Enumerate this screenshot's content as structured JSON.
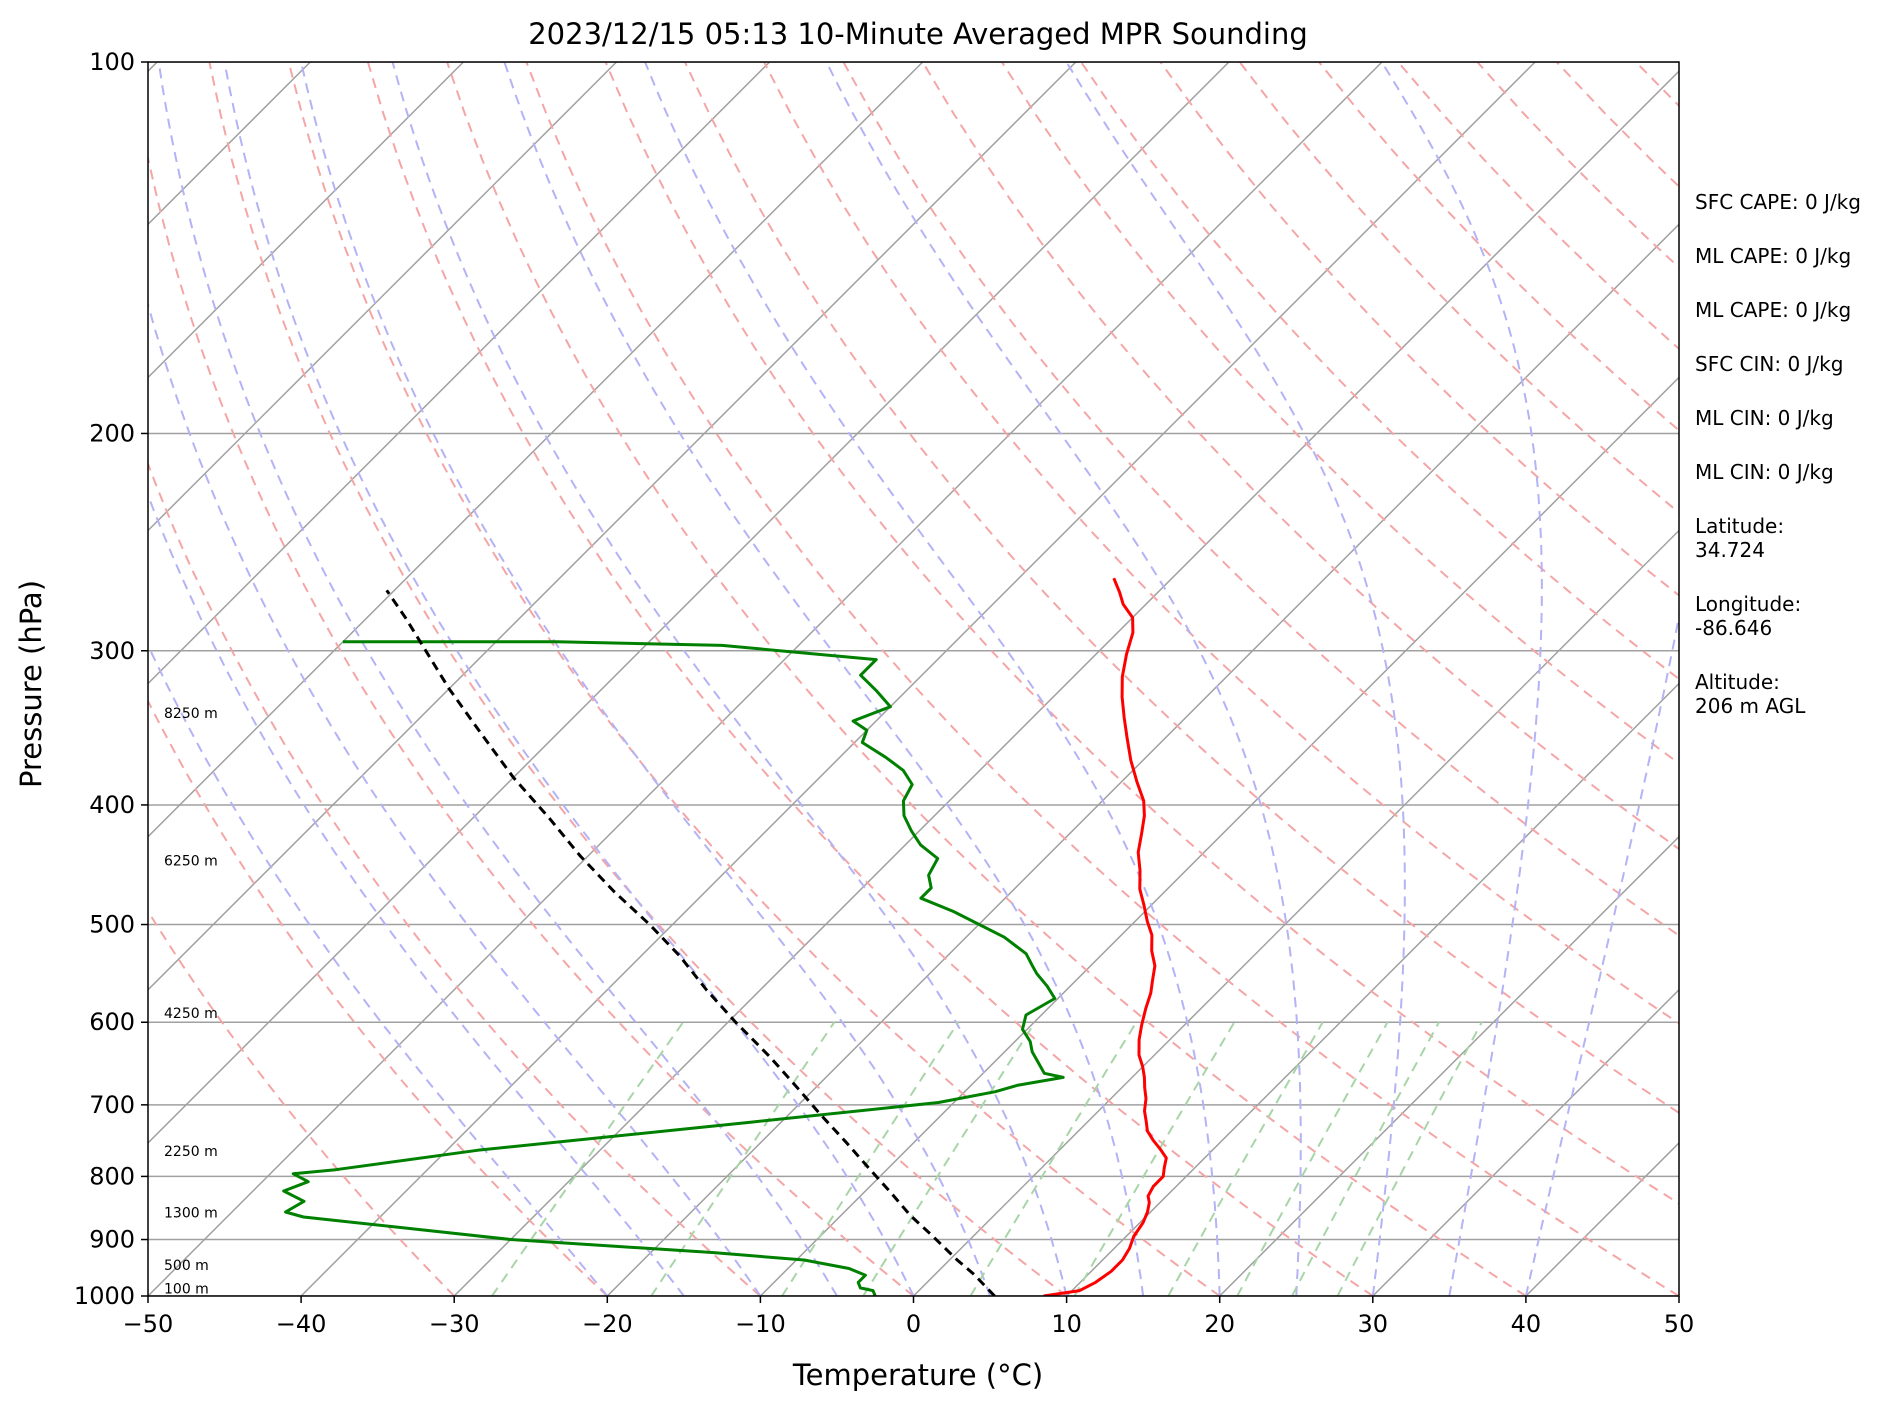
{
  "chart_data": {
    "type": "skew-t",
    "title": "2023/12/15 05:13 10-Minute Averaged MPR Sounding",
    "xlabel": "Temperature (°C)",
    "ylabel": "Pressure (hPa)",
    "xlim": [
      -50,
      50
    ],
    "ylim": [
      1000,
      100
    ],
    "y_scale": "log",
    "x_ticks": [
      -50,
      -40,
      -30,
      -20,
      -10,
      0,
      10,
      20,
      30,
      40,
      50
    ],
    "x_tick_labels": [
      "−50",
      "−40",
      "−30",
      "−20",
      "−10",
      "0",
      "10",
      "20",
      "30",
      "40",
      "50"
    ],
    "y_ticks": [
      1000,
      900,
      800,
      700,
      600,
      500,
      400,
      300,
      200,
      100
    ],
    "y_tick_labels": [
      "1000",
      "900",
      "800",
      "700",
      "600",
      "500",
      "400",
      "300",
      "200",
      "100"
    ],
    "grid": true,
    "background_lines": {
      "isotherms_color": "#a0a0a0",
      "dry_adiabats_color": "#f4a6a6",
      "moist_adiabats_color": "#b3b3f5",
      "mixing_ratio_color": "#a8d5a8"
    },
    "series": [
      {
        "color": "#ff0000",
        "points": [
          [
            8.5,
            1000
          ],
          [
            10.5,
            990
          ],
          [
            11.0,
            975
          ],
          [
            11.3,
            955
          ],
          [
            11.3,
            935
          ],
          [
            11.0,
            915
          ],
          [
            10.5,
            895
          ],
          [
            10.2,
            872
          ],
          [
            9.8,
            855
          ],
          [
            9.3,
            840
          ],
          [
            8.8,
            830
          ],
          [
            8.5,
            815
          ],
          [
            8.5,
            800
          ],
          [
            8.0,
            787
          ],
          [
            7.5,
            773
          ],
          [
            6.5,
            760
          ],
          [
            5.5,
            748
          ],
          [
            4.5,
            735
          ],
          [
            3.8,
            722
          ],
          [
            3.0,
            708
          ],
          [
            2.3,
            692
          ],
          [
            1.5,
            678
          ],
          [
            0.8,
            665
          ],
          [
            0.0,
            652
          ],
          [
            -1.0,
            638
          ],
          [
            -2.0,
            620
          ],
          [
            -2.8,
            603
          ],
          [
            -3.6,
            585
          ],
          [
            -4.3,
            568
          ],
          [
            -5.0,
            555
          ],
          [
            -5.8,
            540
          ],
          [
            -7.0,
            525
          ],
          [
            -8.0,
            510
          ],
          [
            -9.2,
            497
          ],
          [
            -10.5,
            482
          ],
          [
            -11.8,
            468
          ],
          [
            -13.0,
            452
          ],
          [
            -14.3,
            437
          ],
          [
            -15.3,
            422
          ],
          [
            -16.3,
            408
          ],
          [
            -17.3,
            397
          ],
          [
            -19.0,
            383
          ],
          [
            -20.8,
            368
          ],
          [
            -22.5,
            353
          ],
          [
            -24.0,
            340
          ],
          [
            -25.5,
            327
          ],
          [
            -26.8,
            315
          ],
          [
            -28.0,
            302
          ],
          [
            -29.0,
            290
          ],
          [
            -30.0,
            282
          ],
          [
            -31.5,
            275
          ],
          [
            -32.5,
            269
          ],
          [
            -33.8,
            262
          ]
        ]
      },
      {
        "color": "#008000",
        "points": [
          [
            -2.5,
            1000
          ],
          [
            -3.0,
            990
          ],
          [
            -4.0,
            985
          ],
          [
            -4.5,
            975
          ],
          [
            -4.5,
            962
          ],
          [
            -6.0,
            950
          ],
          [
            -9.5,
            935
          ],
          [
            -16.0,
            922
          ],
          [
            -30.0,
            900
          ],
          [
            -45.0,
            863
          ],
          [
            -46.5,
            855
          ],
          [
            -46.0,
            838
          ],
          [
            -48.0,
            822
          ],
          [
            -47.0,
            808
          ],
          [
            -48.5,
            796
          ],
          [
            -46.0,
            790
          ],
          [
            -38.0,
            762
          ],
          [
            -22.0,
            723
          ],
          [
            -11.0,
            697
          ],
          [
            -8.0,
            683
          ],
          [
            -7.0,
            675
          ],
          [
            -4.5,
            665
          ],
          [
            -6.0,
            660
          ],
          [
            -7.0,
            648
          ],
          [
            -8.2,
            634
          ],
          [
            -9.0,
            622
          ],
          [
            -10.3,
            608
          ],
          [
            -11.0,
            592
          ],
          [
            -10.2,
            574
          ],
          [
            -11.5,
            561
          ],
          [
            -13.0,
            548
          ],
          [
            -13.8,
            540
          ],
          [
            -15.0,
            528
          ],
          [
            -17.5,
            512
          ],
          [
            -22.5,
            488
          ],
          [
            -25.5,
            476
          ],
          [
            -25.5,
            467
          ],
          [
            -26.5,
            456
          ],
          [
            -27.0,
            442
          ],
          [
            -29.0,
            431
          ],
          [
            -30.5,
            420
          ],
          [
            -32.0,
            408
          ],
          [
            -33.0,
            397
          ],
          [
            -33.5,
            385
          ],
          [
            -35.0,
            375
          ],
          [
            -37.0,
            366
          ],
          [
            -39.5,
            356
          ],
          [
            -40.0,
            348
          ],
          [
            -41.5,
            342
          ],
          [
            -40.0,
            333
          ],
          [
            -42.0,
            323
          ],
          [
            -44.0,
            314
          ],
          [
            -44.0,
            305
          ],
          [
            -55.0,
            297
          ],
          [
            -66.0,
            295
          ],
          [
            -80.0,
            295
          ]
        ]
      },
      {
        "color": "#000000",
        "dashed": true,
        "points": [
          [
            5.3,
            1000
          ],
          [
            2.5,
            960
          ],
          [
            0.5,
            935
          ],
          [
            -2.6,
            895
          ],
          [
            -5.5,
            860
          ],
          [
            -8.2,
            825
          ],
          [
            -11.5,
            785
          ],
          [
            -14.5,
            750
          ],
          [
            -18.0,
            712
          ],
          [
            -21.0,
            680
          ],
          [
            -25.0,
            640
          ],
          [
            -29.5,
            600
          ],
          [
            -33.5,
            565
          ],
          [
            -37.5,
            530
          ],
          [
            -41.5,
            500
          ],
          [
            -46.0,
            470
          ],
          [
            -50.5,
            440
          ],
          [
            -55.0,
            410
          ],
          [
            -60.0,
            380
          ],
          [
            -65.0,
            350
          ],
          [
            -70.0,
            322
          ],
          [
            -74.0,
            300
          ],
          [
            -77.5,
            282
          ],
          [
            -80.5,
            268
          ]
        ]
      }
    ],
    "height_labels": [
      {
        "text": "100 m",
        "p": 995
      },
      {
        "text": "500 m",
        "p": 953
      },
      {
        "text": "1300 m",
        "p": 864
      },
      {
        "text": "2250 m",
        "p": 770
      },
      {
        "text": "4250 m",
        "p": 595
      },
      {
        "text": "6250 m",
        "p": 448
      },
      {
        "text": "8250 m",
        "p": 340
      }
    ]
  },
  "stats": [
    "SFC CAPE: 0 J/kg",
    "ML CAPE: 0 J/kg",
    "ML CAPE: 0 J/kg",
    "SFC CIN: 0 J/kg",
    "ML CIN: 0 J/kg",
    "ML CIN: 0 J/kg",
    "Latitude:\n34.724",
    "Longitude:\n-86.646",
    "Altitude:\n206 m AGL"
  ]
}
